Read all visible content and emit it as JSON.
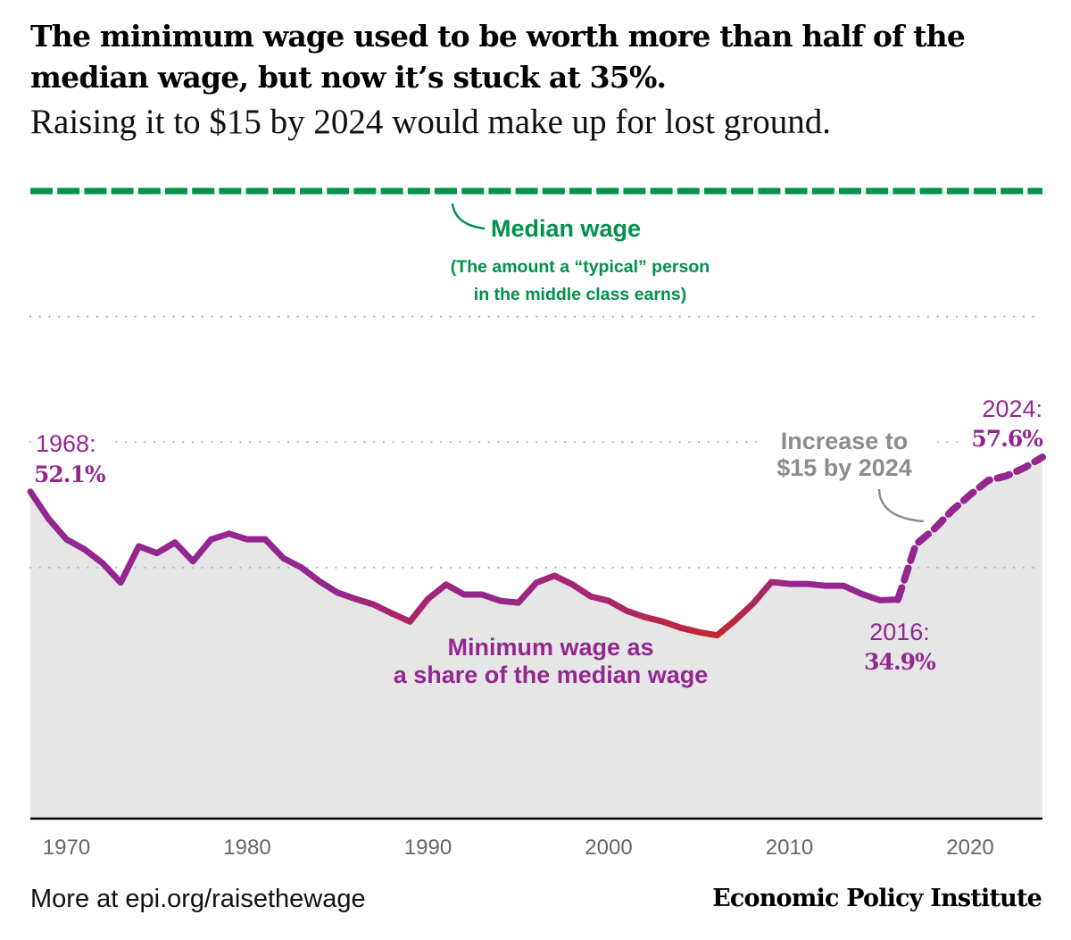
{
  "title": "The minimum wage used to be worth more than half of the median wage, but now it’s stuck at 35%.",
  "subtitle": "Raising it to $15 by 2024 would make up for lost ground.",
  "footer": {
    "source": "More at epi.org/raisethewage",
    "brand": "Economic Policy Institute"
  },
  "colors": {
    "median": "#00914a",
    "line": "#93278f",
    "line_low": "#c1272d",
    "area": "#e6e6e6",
    "grid": "#b3b3b3",
    "annotation_gray": "#8c8c8c",
    "axis": "#000000",
    "tick_text": "#666666"
  },
  "chart_data": {
    "type": "area",
    "title": "The minimum wage used to be worth more than half of the median wage, but now it’s stuck at 35%.",
    "subtitle": "Raising it to $15 by 2024 would make up for lost ground.",
    "xlabel": "",
    "ylabel": "",
    "xlim": [
      1968,
      2024
    ],
    "ylim": [
      0,
      100
    ],
    "x_ticks": [
      1970,
      1980,
      1990,
      2000,
      2010,
      2020
    ],
    "y_gridlines": [
      40,
      60,
      80
    ],
    "grid": true,
    "reference_line": {
      "value": 100,
      "label": "Median wage",
      "note_line1": "(The amount a “typical” person",
      "note_line2": "in the middle class earns)"
    },
    "series": [
      {
        "name": "Minimum wage as a share of the median wage",
        "label_line1": "Minimum wage as",
        "label_line2": "a share of the median wage",
        "style": "solid",
        "x": [
          1968,
          1969,
          1970,
          1971,
          1972,
          1973,
          1974,
          1975,
          1976,
          1977,
          1978,
          1979,
          1980,
          1981,
          1982,
          1983,
          1984,
          1985,
          1986,
          1987,
          1988,
          1989,
          1990,
          1991,
          1992,
          1993,
          1994,
          1995,
          1996,
          1997,
          1998,
          1999,
          2000,
          2001,
          2002,
          2003,
          2004,
          2005,
          2006,
          2007,
          2008,
          2009,
          2010,
          2011,
          2012,
          2013,
          2014,
          2015,
          2016
        ],
        "values": [
          52.1,
          47.8,
          44.5,
          42.9,
          40.7,
          37.6,
          43.4,
          42.3,
          44.0,
          41.0,
          44.5,
          45.4,
          44.5,
          44.5,
          41.5,
          40.0,
          37.8,
          36.0,
          35.0,
          34.1,
          32.7,
          31.4,
          35.0,
          37.3,
          35.7,
          35.7,
          34.7,
          34.4,
          37.6,
          38.7,
          37.3,
          35.4,
          34.7,
          33.1,
          32.1,
          31.4,
          30.4,
          29.7,
          29.2,
          31.6,
          34.3,
          37.7,
          37.4,
          37.4,
          37.1,
          37.1,
          35.8,
          34.8,
          34.9
        ]
      },
      {
        "name": "Increase to $15 by 2024",
        "style": "dashed",
        "x": [
          2016,
          2017,
          2018,
          2019,
          2020,
          2021,
          2022,
          2023,
          2024
        ],
        "values": [
          34.9,
          43.7,
          46.1,
          49.1,
          51.6,
          53.9,
          54.6,
          55.9,
          57.6
        ]
      }
    ],
    "annotations": [
      {
        "year": 1968,
        "label": "1968:",
        "value_label": "52.1%"
      },
      {
        "year": 2016,
        "label": "2016:",
        "value_label": "34.9%"
      },
      {
        "year": 2024,
        "label": "2024:",
        "value_label": "57.6%"
      },
      {
        "label_line1": "Increase to",
        "label_line2": "$15 by 2024"
      }
    ]
  }
}
